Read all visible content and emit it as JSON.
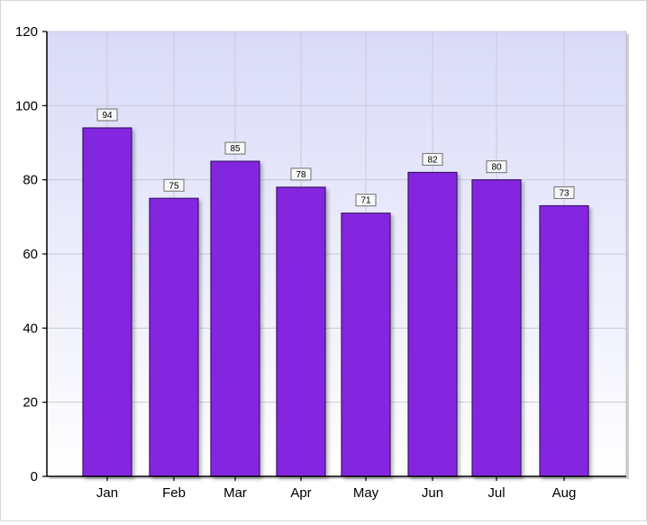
{
  "chart_data": {
    "type": "bar",
    "title": "",
    "xlabel": "",
    "ylabel": "",
    "categories": [
      "Jan",
      "Feb",
      "Mar",
      "Apr",
      "May",
      "Jun",
      "Jul",
      "Aug"
    ],
    "values": [
      94,
      75,
      85,
      78,
      71,
      82,
      80,
      73
    ],
    "data_labels": [
      "94",
      "75",
      "85",
      "78",
      "71",
      "82",
      "80",
      "73"
    ],
    "y_ticks": [
      0,
      20,
      40,
      60,
      80,
      100,
      120
    ],
    "y_tick_labels": [
      "0",
      "20",
      "40",
      "60",
      "80",
      "100",
      "120"
    ],
    "ylim": [
      0,
      120
    ],
    "grid": true,
    "legend": "none",
    "colors": {
      "bar_fill": "#8426E0",
      "bar_edge": "#3D1769",
      "plot_bg_top": "#D9DAF8",
      "plot_bg_bottom": "#FFFFFF",
      "grid": "#C9CAD8",
      "axis": "#000000",
      "label_box_fill": "#F7F7F7",
      "label_box_stroke": "#707070"
    }
  }
}
